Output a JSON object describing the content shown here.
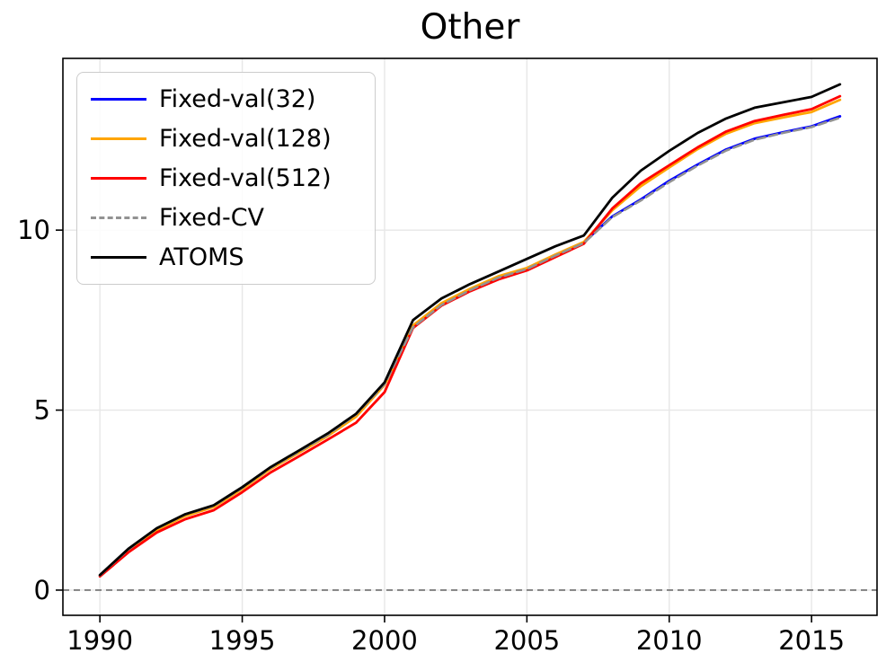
{
  "title": "Other",
  "chart_data": {
    "type": "line",
    "title": "Other",
    "xlabel": "",
    "ylabel": "",
    "x": [
      1990,
      1991,
      1992,
      1993,
      1994,
      1995,
      1996,
      1997,
      1998,
      1999,
      2000,
      2001,
      2002,
      2003,
      2004,
      2005,
      2006,
      2007,
      2008,
      2009,
      2010,
      2011,
      2012,
      2013,
      2014,
      2015,
      2016
    ],
    "series": [
      {
        "name": "Fixed-val(32)",
        "color": "#0000ff",
        "style": "solid",
        "values": [
          0.4,
          1.12,
          1.7,
          2.08,
          2.33,
          2.83,
          3.39,
          3.84,
          4.3,
          4.86,
          5.73,
          7.32,
          7.94,
          8.35,
          8.7,
          8.94,
          9.31,
          9.66,
          10.38,
          10.85,
          11.37,
          11.82,
          12.24,
          12.54,
          12.72,
          12.88,
          13.16
        ]
      },
      {
        "name": "Fixed-val(128)",
        "color": "#ffa500",
        "style": "solid",
        "values": [
          0.4,
          1.1,
          1.67,
          2.06,
          2.31,
          2.81,
          3.37,
          3.82,
          4.28,
          4.82,
          5.7,
          7.35,
          7.97,
          8.37,
          8.72,
          8.95,
          9.32,
          9.67,
          10.55,
          11.22,
          11.74,
          12.25,
          12.68,
          12.97,
          13.13,
          13.28,
          13.62
        ]
      },
      {
        "name": "Fixed-val(512)",
        "color": "#ff0000",
        "style": "solid",
        "values": [
          0.38,
          1.05,
          1.6,
          1.97,
          2.22,
          2.72,
          3.27,
          3.72,
          4.18,
          4.65,
          5.5,
          7.28,
          7.9,
          8.3,
          8.63,
          8.88,
          9.25,
          9.62,
          10.6,
          11.3,
          11.8,
          12.3,
          12.74,
          13.03,
          13.2,
          13.36,
          13.72
        ]
      },
      {
        "name": "Fixed-CV",
        "color": "#929292",
        "style": "dashed",
        "values": [
          0.41,
          1.13,
          1.71,
          2.1,
          2.34,
          2.84,
          3.4,
          3.85,
          4.31,
          4.88,
          5.72,
          7.3,
          7.92,
          8.33,
          8.68,
          8.92,
          9.29,
          9.64,
          10.36,
          10.82,
          11.33,
          11.79,
          12.21,
          12.51,
          12.7,
          12.86,
          13.12
        ]
      },
      {
        "name": "ATOMS",
        "color": "#000000",
        "style": "solid",
        "values": [
          0.42,
          1.15,
          1.72,
          2.11,
          2.36,
          2.86,
          3.42,
          3.88,
          4.35,
          4.9,
          5.77,
          7.5,
          8.1,
          8.5,
          8.85,
          9.2,
          9.55,
          9.85,
          10.9,
          11.65,
          12.2,
          12.7,
          13.1,
          13.4,
          13.55,
          13.7,
          14.05
        ]
      }
    ],
    "xticks": [
      1990,
      1995,
      2000,
      2005,
      2010,
      2015
    ],
    "yticks": [
      0,
      5,
      10
    ],
    "xlim": [
      1988.7,
      2017.3
    ],
    "ylim": [
      -0.7,
      14.77
    ],
    "grid": true,
    "grid_color": "#e7e7e7",
    "zero_line": true,
    "zero_line_color": "#7f7f7f",
    "legend_position": "upper left"
  }
}
